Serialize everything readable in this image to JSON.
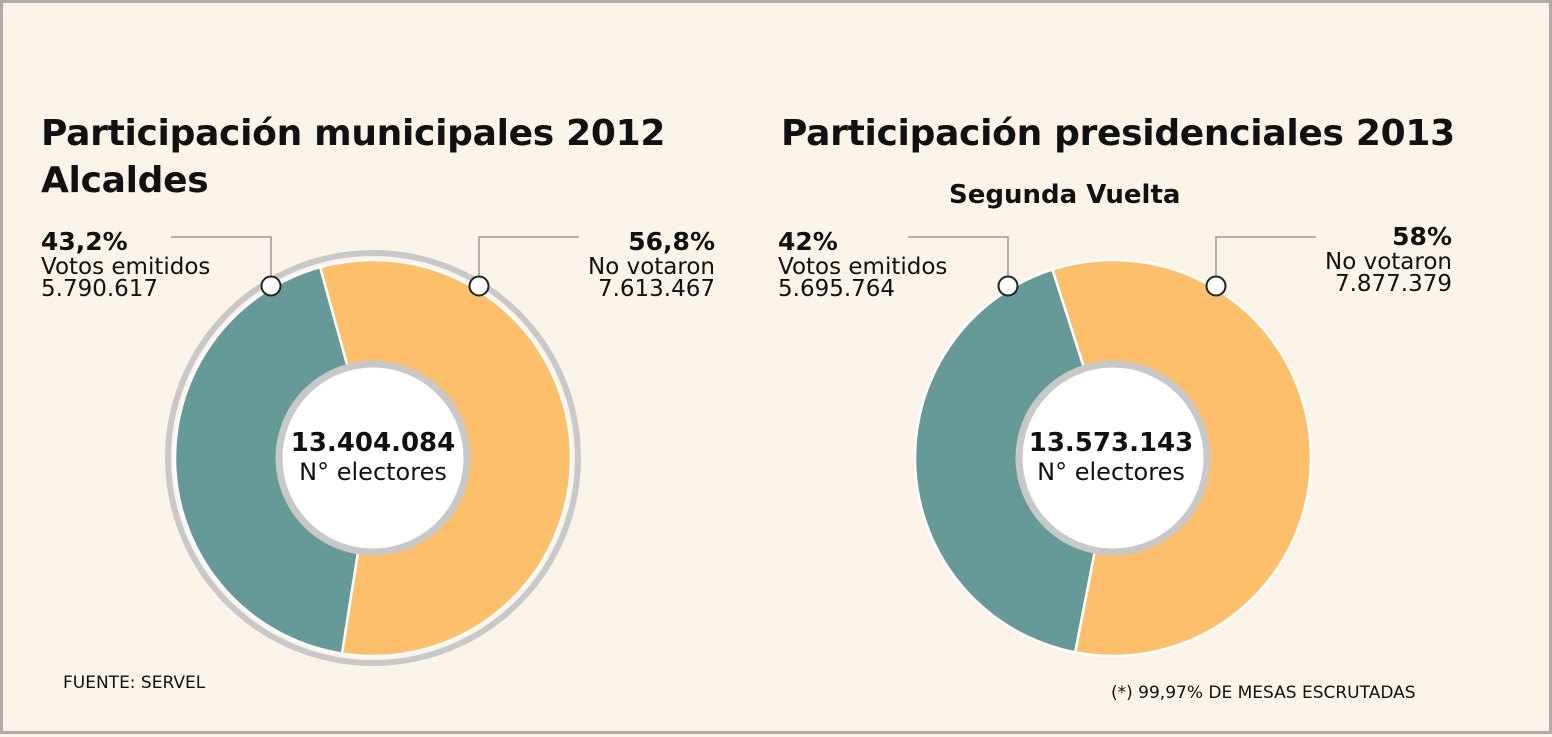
{
  "chart_data": [
    {
      "type": "pie",
      "variant": "donut",
      "title": "Participación municipales 2012",
      "subtitle": "Alcaldes",
      "categories": [
        "Votos emitidos",
        "No votaron"
      ],
      "values": [
        43.2,
        56.8
      ],
      "percent_labels": [
        "43,2%",
        "56,8%"
      ],
      "counts": [
        "5.790.617",
        "7.613.467"
      ],
      "center_value": "13.404.084",
      "center_label": "N° electores",
      "colors": [
        "#669a98",
        "#fdbf6a"
      ],
      "outer_ring": true
    },
    {
      "type": "pie",
      "variant": "donut",
      "title": "Participación presidenciales 2013",
      "subtitle": "Segunda Vuelta",
      "categories": [
        "Votos emitidos",
        "No votaron"
      ],
      "values": [
        42,
        58
      ],
      "percent_labels": [
        "42%",
        "58%"
      ],
      "counts": [
        "5.695.764",
        "7.877.379"
      ],
      "center_value": "13.573.143",
      "center_label": "N° electores",
      "colors": [
        "#669a98",
        "#fdbf6a"
      ],
      "outer_ring": false
    }
  ],
  "source": "FUENTE: SERVEL",
  "footnote": "(*) 99,97% DE MESAS ESCRUTADAS",
  "ring_color": "#c8c8c8",
  "background": "#faf3e8"
}
